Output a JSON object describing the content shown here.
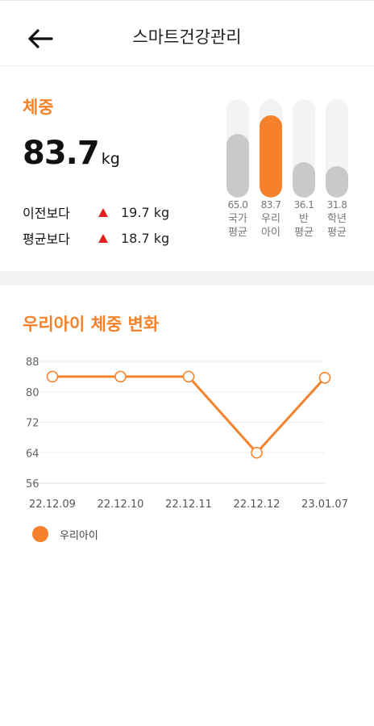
{
  "header": {
    "title": "스마트건강관리"
  },
  "weight": {
    "section_title": "체중",
    "value": "83.7",
    "unit": "kg",
    "compare": [
      {
        "label": "이전보다",
        "value": "19.7",
        "unit": "kg",
        "direction": "up"
      },
      {
        "label": "평균보다",
        "value": "18.7",
        "unit": "kg",
        "direction": "up"
      }
    ]
  },
  "bars": [
    {
      "value": "65.0",
      "label": "국가\n평균",
      "level": 65.0,
      "highlight": false
    },
    {
      "value": "83.7",
      "label": "우리\n아이",
      "level": 83.7,
      "highlight": true
    },
    {
      "value": "36.1",
      "label": "반\n평균",
      "level": 36.1,
      "highlight": false
    },
    {
      "value": "31.8",
      "label": "학년\n평균",
      "level": 31.8,
      "highlight": false
    }
  ],
  "colors": {
    "accent": "#f5822b",
    "up_arrow": "#e21f1f",
    "bar_gray": "#c9c9c9"
  },
  "chart_section_title": "우리아이 체중 변화",
  "chart_data": {
    "type": "line",
    "categories": [
      "22.12.09",
      "22.12.10",
      "22.12.11",
      "22.12.12",
      "23.01.07"
    ],
    "series": [
      {
        "name": "우리아이",
        "values": [
          84,
          84,
          84,
          64,
          83.7
        ],
        "color": "#f5822b"
      }
    ],
    "ylim": [
      56,
      88
    ],
    "yticks": [
      88,
      80,
      72,
      64,
      56
    ],
    "grid": true,
    "legend": "bottom-left"
  }
}
